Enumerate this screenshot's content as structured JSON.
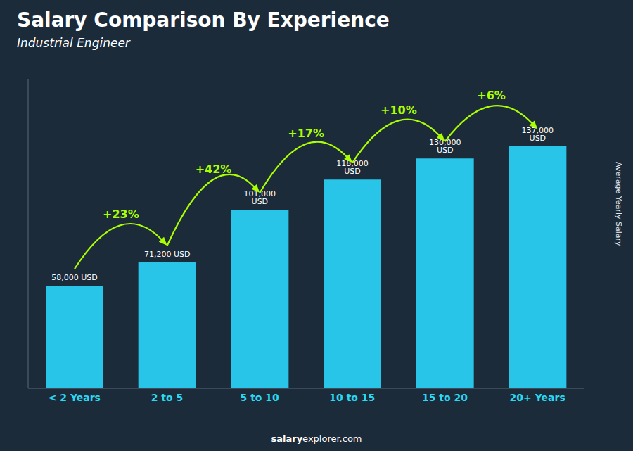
{
  "chart_data": {
    "type": "bar",
    "title": "Salary Comparison By Experience",
    "subtitle": "Industrial Engineer",
    "ylabel": "Average Yearly Salary",
    "categories": [
      "< 2 Years",
      "2 to 5",
      "5 to 10",
      "10 to 15",
      "15 to 20",
      "20+ Years"
    ],
    "values": [
      58000,
      71200,
      101000,
      118000,
      130000,
      137000
    ],
    "value_labels": [
      "58,000 USD",
      "71,200 USD",
      "101,000 USD",
      "118,000 USD",
      "130,000 USD",
      "137,000 USD"
    ],
    "annotations": [
      "+23%",
      "+42%",
      "+17%",
      "+10%",
      "+6%"
    ],
    "footer": [
      "salary",
      "explorer.com"
    ],
    "color": "#29c5e8",
    "ylim": [
      0,
      175000
    ],
    "data_labels": true,
    "tick_labels": "x"
  }
}
